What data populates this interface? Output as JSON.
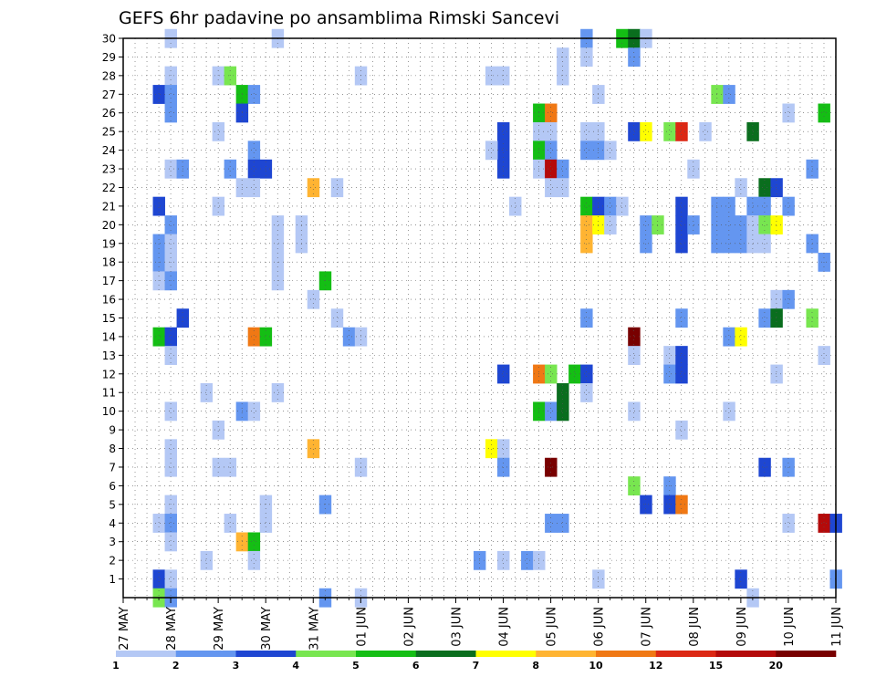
{
  "chart_data": {
    "type": "heatmap",
    "title": "GEFS 6hr padavine po ansamblima Rimski Sancevi",
    "x_tick_labels": [
      "27 MAY",
      "28 MAY",
      "29 MAY",
      "30 MAY",
      "31 MAY",
      "01 JUN",
      "02 JUN",
      "03 JUN",
      "04 JUN",
      "05 JUN",
      "06 JUN",
      "07 JUN",
      "08 JUN",
      "09 JUN",
      "10 JUN",
      "11 JUN"
    ],
    "y_tick_labels": [
      "1",
      "2",
      "3",
      "4",
      "5",
      "6",
      "7",
      "8",
      "9",
      "10",
      "11",
      "12",
      "13",
      "14",
      "15",
      "16",
      "17",
      "18",
      "19",
      "20",
      "21",
      "22",
      "23",
      "24",
      "25",
      "26",
      "27",
      "28",
      "29",
      "30"
    ],
    "x_steps_per_day": 4,
    "x_range_steps": [
      0,
      60
    ],
    "y_range": [
      0,
      30
    ],
    "grid": true,
    "legend": {
      "placement": "bottom",
      "colors": [
        "#b4c8f5",
        "#6496f0",
        "#1e46d2",
        "#78e650",
        "#14be14",
        "#0a6e1e",
        "#ffff00",
        "#ffb432",
        "#f07814",
        "#dc2814",
        "#b40a0a",
        "#780000"
      ],
      "labels": [
        "1",
        "2",
        "3",
        "4",
        "5",
        "6",
        "7",
        "8",
        "10",
        "12",
        "15",
        "20"
      ]
    },
    "cells": [
      [
        4,
        30,
        0
      ],
      [
        13,
        30,
        0
      ],
      [
        39,
        30,
        1
      ],
      [
        42,
        30,
        4
      ],
      [
        43,
        30,
        5
      ],
      [
        44,
        30,
        0
      ],
      [
        43,
        29,
        1
      ],
      [
        37,
        29,
        0
      ],
      [
        39,
        29,
        0
      ],
      [
        4,
        28,
        0
      ],
      [
        8,
        28,
        0
      ],
      [
        9,
        28,
        3
      ],
      [
        20,
        28,
        0
      ],
      [
        31,
        28,
        0
      ],
      [
        32,
        28,
        0
      ],
      [
        37,
        28,
        0
      ],
      [
        3,
        27,
        2
      ],
      [
        4,
        27,
        1
      ],
      [
        10,
        27,
        4
      ],
      [
        11,
        27,
        1
      ],
      [
        40,
        27,
        0
      ],
      [
        50,
        27,
        3
      ],
      [
        51,
        27,
        1
      ],
      [
        4,
        26,
        1
      ],
      [
        10,
        26,
        2
      ],
      [
        35,
        26,
        4
      ],
      [
        36,
        26,
        8
      ],
      [
        56,
        26,
        0
      ],
      [
        59,
        26,
        4
      ],
      [
        8,
        25,
        0
      ],
      [
        32,
        25,
        2
      ],
      [
        35,
        25,
        0
      ],
      [
        36,
        25,
        0
      ],
      [
        39,
        25,
        0
      ],
      [
        40,
        25,
        0
      ],
      [
        43,
        25,
        2
      ],
      [
        44,
        25,
        6
      ],
      [
        46,
        25,
        3
      ],
      [
        47,
        25,
        9
      ],
      [
        49,
        25,
        0
      ],
      [
        53,
        25,
        5
      ],
      [
        11,
        24,
        1
      ],
      [
        32,
        24,
        2
      ],
      [
        31,
        24,
        0
      ],
      [
        35,
        24,
        4
      ],
      [
        36,
        24,
        1
      ],
      [
        39,
        24,
        1
      ],
      [
        40,
        24,
        1
      ],
      [
        41,
        24,
        0
      ],
      [
        4,
        23,
        0
      ],
      [
        5,
        23,
        1
      ],
      [
        9,
        23,
        1
      ],
      [
        11,
        23,
        2
      ],
      [
        12,
        23,
        2
      ],
      [
        32,
        23,
        2
      ],
      [
        35,
        23,
        0
      ],
      [
        36,
        23,
        10
      ],
      [
        37,
        23,
        1
      ],
      [
        48,
        23,
        0
      ],
      [
        58,
        23,
        1
      ],
      [
        10,
        22,
        0
      ],
      [
        11,
        22,
        0
      ],
      [
        16,
        22,
        7
      ],
      [
        18,
        22,
        0
      ],
      [
        36,
        22,
        0
      ],
      [
        37,
        22,
        0
      ],
      [
        52,
        22,
        0
      ],
      [
        54,
        22,
        5
      ],
      [
        55,
        22,
        2
      ],
      [
        3,
        21,
        2
      ],
      [
        8,
        21,
        0
      ],
      [
        33,
        21,
        0
      ],
      [
        39,
        21,
        4
      ],
      [
        40,
        21,
        2
      ],
      [
        41,
        21,
        1
      ],
      [
        42,
        21,
        0
      ],
      [
        47,
        21,
        2
      ],
      [
        50,
        21,
        1
      ],
      [
        51,
        21,
        1
      ],
      [
        53,
        21,
        1
      ],
      [
        54,
        21,
        1
      ],
      [
        56,
        21,
        1
      ],
      [
        4,
        20,
        1
      ],
      [
        13,
        20,
        0
      ],
      [
        15,
        20,
        0
      ],
      [
        39,
        20,
        7
      ],
      [
        40,
        20,
        6
      ],
      [
        41,
        20,
        0
      ],
      [
        44,
        20,
        1
      ],
      [
        45,
        20,
        3
      ],
      [
        47,
        20,
        2
      ],
      [
        48,
        20,
        1
      ],
      [
        50,
        20,
        1
      ],
      [
        51,
        20,
        1
      ],
      [
        52,
        20,
        1
      ],
      [
        53,
        20,
        0
      ],
      [
        54,
        20,
        3
      ],
      [
        55,
        20,
        6
      ],
      [
        3,
        19,
        1
      ],
      [
        4,
        19,
        0
      ],
      [
        13,
        19,
        0
      ],
      [
        15,
        19,
        0
      ],
      [
        39,
        19,
        7
      ],
      [
        44,
        19,
        1
      ],
      [
        47,
        19,
        2
      ],
      [
        50,
        19,
        1
      ],
      [
        51,
        19,
        1
      ],
      [
        52,
        19,
        1
      ],
      [
        53,
        19,
        0
      ],
      [
        54,
        19,
        0
      ],
      [
        3,
        18,
        1
      ],
      [
        4,
        18,
        0
      ],
      [
        13,
        18,
        0
      ],
      [
        59,
        18,
        1
      ],
      [
        58,
        19,
        1
      ],
      [
        3,
        17,
        0
      ],
      [
        4,
        17,
        1
      ],
      [
        13,
        17,
        0
      ],
      [
        17,
        17,
        4
      ],
      [
        16,
        16,
        0
      ],
      [
        55,
        16,
        0
      ],
      [
        56,
        16,
        1
      ],
      [
        5,
        15,
        2
      ],
      [
        18,
        15,
        0
      ],
      [
        39,
        15,
        1
      ],
      [
        47,
        15,
        1
      ],
      [
        54,
        15,
        1
      ],
      [
        55,
        15,
        5
      ],
      [
        58,
        15,
        3
      ],
      [
        3,
        14,
        4
      ],
      [
        4,
        14,
        2
      ],
      [
        11,
        14,
        8
      ],
      [
        12,
        14,
        4
      ],
      [
        19,
        14,
        1
      ],
      [
        20,
        14,
        0
      ],
      [
        43,
        14,
        11
      ],
      [
        51,
        14,
        1
      ],
      [
        52,
        14,
        6
      ],
      [
        4,
        13,
        0
      ],
      [
        43,
        13,
        0
      ],
      [
        46,
        13,
        0
      ],
      [
        47,
        13,
        2
      ],
      [
        59,
        13,
        0
      ],
      [
        32,
        12,
        2
      ],
      [
        35,
        12,
        8
      ],
      [
        36,
        12,
        3
      ],
      [
        38,
        12,
        4
      ],
      [
        39,
        12,
        2
      ],
      [
        46,
        12,
        1
      ],
      [
        47,
        12,
        2
      ],
      [
        55,
        12,
        0
      ],
      [
        7,
        11,
        0
      ],
      [
        13,
        11,
        0
      ],
      [
        37,
        11,
        5
      ],
      [
        39,
        11,
        0
      ],
      [
        4,
        10,
        0
      ],
      [
        10,
        10,
        1
      ],
      [
        11,
        10,
        0
      ],
      [
        35,
        10,
        4
      ],
      [
        36,
        10,
        1
      ],
      [
        37,
        10,
        5
      ],
      [
        43,
        10,
        0
      ],
      [
        51,
        10,
        0
      ],
      [
        8,
        9,
        0
      ],
      [
        47,
        9,
        0
      ],
      [
        4,
        8,
        0
      ],
      [
        16,
        8,
        7
      ],
      [
        31,
        8,
        6
      ],
      [
        32,
        8,
        0
      ],
      [
        4,
        7,
        0
      ],
      [
        8,
        7,
        0
      ],
      [
        9,
        7,
        0
      ],
      [
        20,
        7,
        0
      ],
      [
        32,
        7,
        1
      ],
      [
        36,
        7,
        11
      ],
      [
        54,
        7,
        2
      ],
      [
        56,
        7,
        1
      ],
      [
        43,
        6,
        3
      ],
      [
        46,
        6,
        1
      ],
      [
        4,
        5,
        0
      ],
      [
        12,
        5,
        0
      ],
      [
        17,
        5,
        1
      ],
      [
        44,
        5,
        2
      ],
      [
        46,
        5,
        2
      ],
      [
        47,
        5,
        8
      ],
      [
        3,
        4,
        0
      ],
      [
        4,
        4,
        1
      ],
      [
        9,
        4,
        0
      ],
      [
        12,
        4,
        0
      ],
      [
        36,
        4,
        1
      ],
      [
        37,
        4,
        1
      ],
      [
        56,
        4,
        0
      ],
      [
        59,
        4,
        10
      ],
      [
        60,
        4,
        2
      ],
      [
        4,
        3,
        0
      ],
      [
        10,
        3,
        7
      ],
      [
        11,
        3,
        4
      ],
      [
        7,
        2,
        0
      ],
      [
        11,
        2,
        0
      ],
      [
        30,
        2,
        1
      ],
      [
        32,
        2,
        0
      ],
      [
        34,
        2,
        1
      ],
      [
        35,
        2,
        0
      ],
      [
        3,
        1,
        2
      ],
      [
        4,
        1,
        0
      ],
      [
        40,
        1,
        0
      ],
      [
        52,
        1,
        2
      ],
      [
        60,
        1,
        1
      ],
      [
        3,
        0,
        3
      ],
      [
        4,
        0,
        1
      ],
      [
        17,
        0,
        1
      ],
      [
        20,
        0,
        0
      ],
      [
        53,
        0,
        0
      ]
    ]
  }
}
